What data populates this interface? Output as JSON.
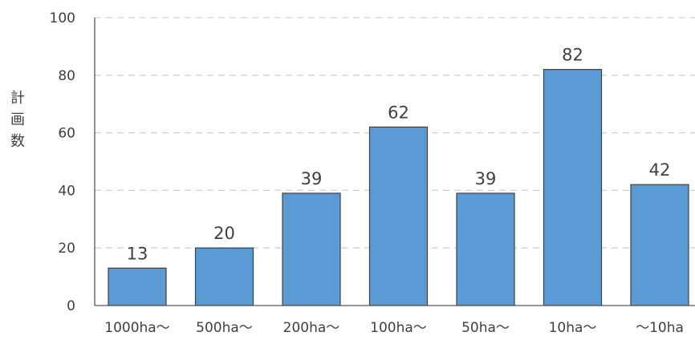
{
  "chart_data": {
    "type": "bar",
    "categories": [
      "1000ha～",
      "500ha～",
      "200ha～",
      "100ha～",
      "50ha～",
      "10ha～",
      "～10ha"
    ],
    "values": [
      13,
      20,
      39,
      62,
      39,
      82,
      42
    ],
    "title": "",
    "xlabel": "",
    "ylabel": "計画数",
    "ylim": [
      0,
      100
    ],
    "yticks": [
      0,
      20,
      40,
      60,
      80,
      100
    ],
    "grid": true,
    "data_labels": true,
    "bar_color": "#5b9bd5"
  }
}
